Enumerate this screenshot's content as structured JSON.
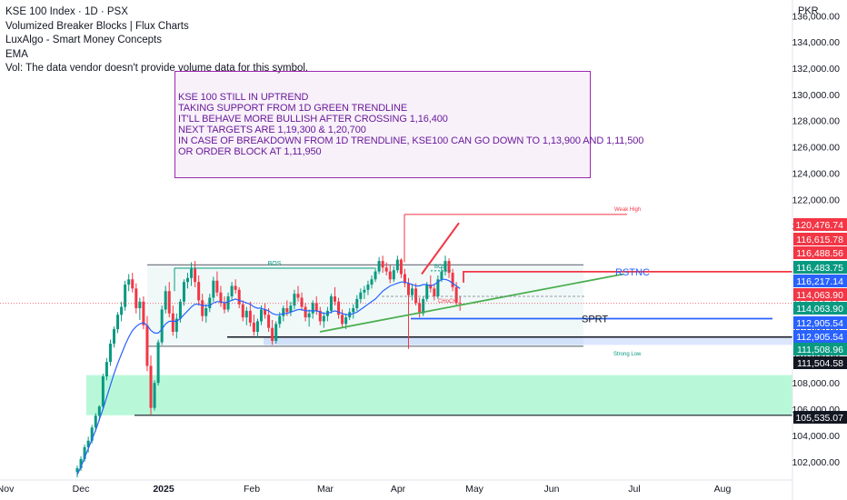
{
  "header": {
    "symbol_line": "KSE 100 Index · 1D · PSX",
    "indicators": [
      "Volumized Breaker Blocks | Flux Charts",
      "LuxAlgo - Smart Money Concepts",
      "EMA",
      "Vol: The data vendor doesn't provide volume data for this symbol."
    ]
  },
  "currency": "PKR",
  "note": {
    "lines": [
      "KSE 100 STILL IN UPTREND",
      "TAKING SUPPORT FROM 1D GREEN TRENDLINE",
      "IT'LL BEHAVE MORE BULLISH AFTER CROSSING 1,16,400",
      "NEXT TARGETS ARE 1,19,300 & 1,20,700",
      "IN CASE OF BREAKDOWN FROM 1D TRENDLINE, KSE100 CAN GO DOWN TO 1,13,900 AND 1,11,500",
      "OR ORDER BLOCK AT 1,11,950"
    ]
  },
  "colors": {
    "up": "#089981",
    "down": "#f23645",
    "ema": "#2962ff",
    "trend": "#4caf50",
    "purple": "#9c27b0"
  },
  "chart_data": {
    "type": "candlestick",
    "x_axis_labels": [
      "Nov",
      "Dec",
      "2025",
      "Feb",
      "Mar",
      "Apr",
      "May",
      "Jun",
      "Jul",
      "Aug"
    ],
    "y_ticks": [
      "102,000.00",
      "104,000.00",
      "106,000.00",
      "108,000.00",
      "110,000.00",
      "112,000.00",
      "114,000.00",
      "116,000.00",
      "118,000.00",
      "120,000.00",
      "122,000.00",
      "124,000.00",
      "126,000.00",
      "128,000.00",
      "130,000.00",
      "132,000.00",
      "134,000.00",
      "136,000.00"
    ],
    "y_range": [
      100600,
      137200
    ],
    "price_tags": [
      {
        "value": 120476.74,
        "label": "120,476.74",
        "color": "#f23645"
      },
      {
        "value": 116615.78,
        "label": "116,615.78",
        "color": "#f23645"
      },
      {
        "value": 116488.56,
        "label": "116,488.56",
        "color": "#f23645"
      },
      {
        "value": 116483.75,
        "label": "116,483.75",
        "color": "#089981"
      },
      {
        "value": 116217.14,
        "label": "116,217.14",
        "color": "#2962ff"
      },
      {
        "value": 114063.9,
        "label": "114,063.90",
        "color": "#f23645"
      },
      {
        "value": 114063.9,
        "label": "114,063.90",
        "color": "#089981"
      },
      {
        "value": 112905.54,
        "label": "112,905.54",
        "color": "#2962ff"
      },
      {
        "value": 112905.54,
        "label": "112,905.54",
        "color": "#2962ff"
      },
      {
        "value": 111508.96,
        "label": "111,508.96",
        "color": "#089981"
      },
      {
        "value": 111504.58,
        "label": "111,504.58",
        "color": "#131722"
      },
      {
        "value": 105535.07,
        "label": "105,535.07",
        "color": "#131722"
      }
    ],
    "annotations": {
      "bos_top": "BOS",
      "bos_mid": "BOS",
      "weak_high": "Weak High",
      "strong_low": "Strong Low",
      "choch": "CHoCH",
      "resistance": "RSTNC",
      "support": "SPRT"
    },
    "levels": {
      "resistance": 116483.75,
      "support": 112905.54,
      "black_line": 111504.58,
      "order_block_top": 111508.96,
      "order_block_bottom": 110900,
      "demand_top": 108600,
      "demand_bottom": 105535.07,
      "weak_high": 120850
    },
    "candles": [
      [
        101200,
        101700,
        100800,
        101500
      ],
      [
        101500,
        102400,
        101300,
        102200
      ],
      [
        102200,
        103300,
        102000,
        103100
      ],
      [
        103100,
        103900,
        102700,
        103600
      ],
      [
        103600,
        104800,
        103400,
        104600
      ],
      [
        104600,
        105700,
        104300,
        105500
      ],
      [
        105500,
        106300,
        105100,
        106200
      ],
      [
        106200,
        108700,
        106000,
        108500
      ],
      [
        108500,
        109900,
        108200,
        109600
      ],
      [
        109600,
        111300,
        109300,
        111000
      ],
      [
        111000,
        112300,
        110700,
        112100
      ],
      [
        112100,
        113400,
        111800,
        113200
      ],
      [
        113200,
        114200,
        112700,
        113800
      ],
      [
        113800,
        115800,
        113500,
        115500
      ],
      [
        115500,
        116300,
        115000,
        115900
      ],
      [
        115900,
        116400,
        114900,
        115200
      ],
      [
        115200,
        115600,
        113300,
        113700
      ],
      [
        113700,
        114500,
        112800,
        114200
      ],
      [
        114200,
        114600,
        112100,
        112400
      ],
      [
        112400,
        113100,
        108900,
        109300
      ],
      [
        109300,
        110100,
        105600,
        106100
      ],
      [
        106100,
        108200,
        105900,
        108000
      ],
      [
        108000,
        111300,
        107800,
        111100
      ],
      [
        111100,
        113900,
        110900,
        113600
      ],
      [
        113600,
        115400,
        113300,
        115000
      ],
      [
        115000,
        115700,
        113000,
        113300
      ],
      [
        113300,
        113900,
        111600,
        111900
      ],
      [
        111900,
        113300,
        111400,
        112900
      ],
      [
        112900,
        114400,
        112600,
        114200
      ],
      [
        114200,
        115900,
        113900,
        115700
      ],
      [
        115700,
        116400,
        115200,
        116000
      ],
      [
        116000,
        117200,
        115400,
        116700
      ],
      [
        116700,
        117300,
        115300,
        115700
      ],
      [
        115700,
        116200,
        113900,
        114300
      ],
      [
        114300,
        114800,
        112700,
        113100
      ],
      [
        113100,
        114000,
        112600,
        113700
      ],
      [
        113700,
        114800,
        113400,
        114500
      ],
      [
        114500,
        116100,
        114200,
        115800
      ],
      [
        115800,
        116500,
        114600,
        114900
      ],
      [
        114900,
        115400,
        113800,
        114100
      ],
      [
        114100,
        114600,
        113300,
        113600
      ],
      [
        113600,
        114900,
        113400,
        114600
      ],
      [
        114600,
        115700,
        114300,
        115400
      ],
      [
        115400,
        115900,
        114800,
        115100
      ],
      [
        115100,
        115300,
        113700,
        114000
      ],
      [
        114000,
        114300,
        112700,
        113000
      ],
      [
        113000,
        113800,
        112400,
        113500
      ],
      [
        113500,
        114200,
        112300,
        112600
      ],
      [
        112600,
        113200,
        111600,
        111900
      ],
      [
        111900,
        112900,
        111500,
        112700
      ],
      [
        112700,
        113900,
        112400,
        113600
      ],
      [
        113600,
        114100,
        112900,
        113200
      ],
      [
        113200,
        113700,
        111900,
        112200
      ],
      [
        112200,
        112800,
        110900,
        111200
      ],
      [
        111200,
        112700,
        111000,
        112500
      ],
      [
        112500,
        113400,
        112200,
        113100
      ],
      [
        113100,
        113900,
        112700,
        113700
      ],
      [
        113700,
        114300,
        113100,
        113400
      ],
      [
        113400,
        114200,
        113100,
        113900
      ],
      [
        113900,
        115100,
        113600,
        114800
      ],
      [
        114800,
        115400,
        114200,
        114500
      ],
      [
        114500,
        114900,
        113500,
        113800
      ],
      [
        113800,
        114100,
        112700,
        113000
      ],
      [
        113000,
        113600,
        112300,
        113300
      ],
      [
        113300,
        114300,
        112900,
        114100
      ],
      [
        114100,
        114600,
        113200,
        113500
      ],
      [
        113500,
        113800,
        112400,
        112700
      ],
      [
        112700,
        113400,
        112200,
        113100
      ],
      [
        113100,
        113800,
        112700,
        113500
      ],
      [
        113500,
        114800,
        113300,
        114600
      ],
      [
        114600,
        115300,
        113900,
        114200
      ],
      [
        114200,
        114500,
        112900,
        113200
      ],
      [
        113200,
        113600,
        112200,
        112500
      ],
      [
        112500,
        113300,
        112100,
        113000
      ],
      [
        113000,
        113700,
        112800,
        113400
      ],
      [
        113400,
        114000,
        112900,
        113700
      ],
      [
        113700,
        114700,
        113500,
        114400
      ],
      [
        114400,
        115200,
        114100,
        114900
      ],
      [
        114900,
        115400,
        114400,
        115100
      ],
      [
        115100,
        115800,
        114700,
        115500
      ],
      [
        115500,
        116200,
        115200,
        115900
      ],
      [
        115900,
        116800,
        115700,
        116500
      ],
      [
        116500,
        117600,
        116300,
        117300
      ],
      [
        117300,
        117700,
        116400,
        116800
      ],
      [
        116800,
        117200,
        116200,
        116500
      ],
      [
        116500,
        117000,
        115600,
        115900
      ],
      [
        115900,
        116900,
        115700,
        116600
      ],
      [
        116600,
        117700,
        116400,
        117400
      ],
      [
        117400,
        117500,
        116000,
        116300
      ],
      [
        116300,
        116700,
        115300,
        115600
      ],
      [
        115600,
        116000,
        110600,
        114700
      ],
      [
        114700,
        115500,
        114300,
        115200
      ],
      [
        115200,
        115600,
        113900,
        114100
      ],
      [
        114100,
        114500,
        113000,
        113300
      ],
      [
        113300,
        114600,
        113100,
        114400
      ],
      [
        114400,
        115700,
        114200,
        115500
      ],
      [
        115500,
        116200,
        114900,
        115200
      ],
      [
        115200,
        115500,
        114300,
        114600
      ],
      [
        114600,
        116200,
        114400,
        115900
      ],
      [
        115900,
        116900,
        115700,
        116500
      ],
      [
        116500,
        117700,
        116200,
        117300
      ],
      [
        117300,
        117500,
        116000,
        116400
      ],
      [
        116400,
        116700,
        115000,
        115300
      ],
      [
        115300,
        115700,
        113900,
        114100
      ],
      [
        114100,
        114600,
        113500,
        114063.9
      ]
    ],
    "ema": [
      101000,
      101600,
      102300,
      103000,
      103700,
      104400,
      105200,
      106000,
      106900,
      107800,
      108700,
      109500,
      110200,
      110900,
      111500,
      112000,
      112300,
      112500,
      112600,
      112400,
      112000,
      111800,
      111800,
      112100,
      112500,
      112700,
      112700,
      112700,
      112900,
      113200,
      113500,
      113800,
      114000,
      114000,
      113900,
      113900,
      113900,
      114100,
      114200,
      114200,
      114100,
      114200,
      114300,
      114400,
      114300,
      114200,
      114100,
      114000,
      113800,
      113700,
      113700,
      113600,
      113500,
      113300,
      113200,
      113200,
      113300,
      113300,
      113400,
      113500,
      113600,
      113600,
      113500,
      113500,
      113500,
      113500,
      113400,
      113300,
      113300,
      113400,
      113500,
      113400,
      113300,
      113200,
      113200,
      113300,
      113400,
      113600,
      113800,
      114000,
      114200,
      114400,
      114700,
      115000,
      115200,
      115400,
      115500,
      115600,
      115700,
      115700,
      115600,
      115500,
      115400,
      115400,
      115500,
      115500,
      115400,
      115500,
      115700,
      115900,
      115900,
      115800,
      115600,
      115400,
      115200
    ]
  }
}
